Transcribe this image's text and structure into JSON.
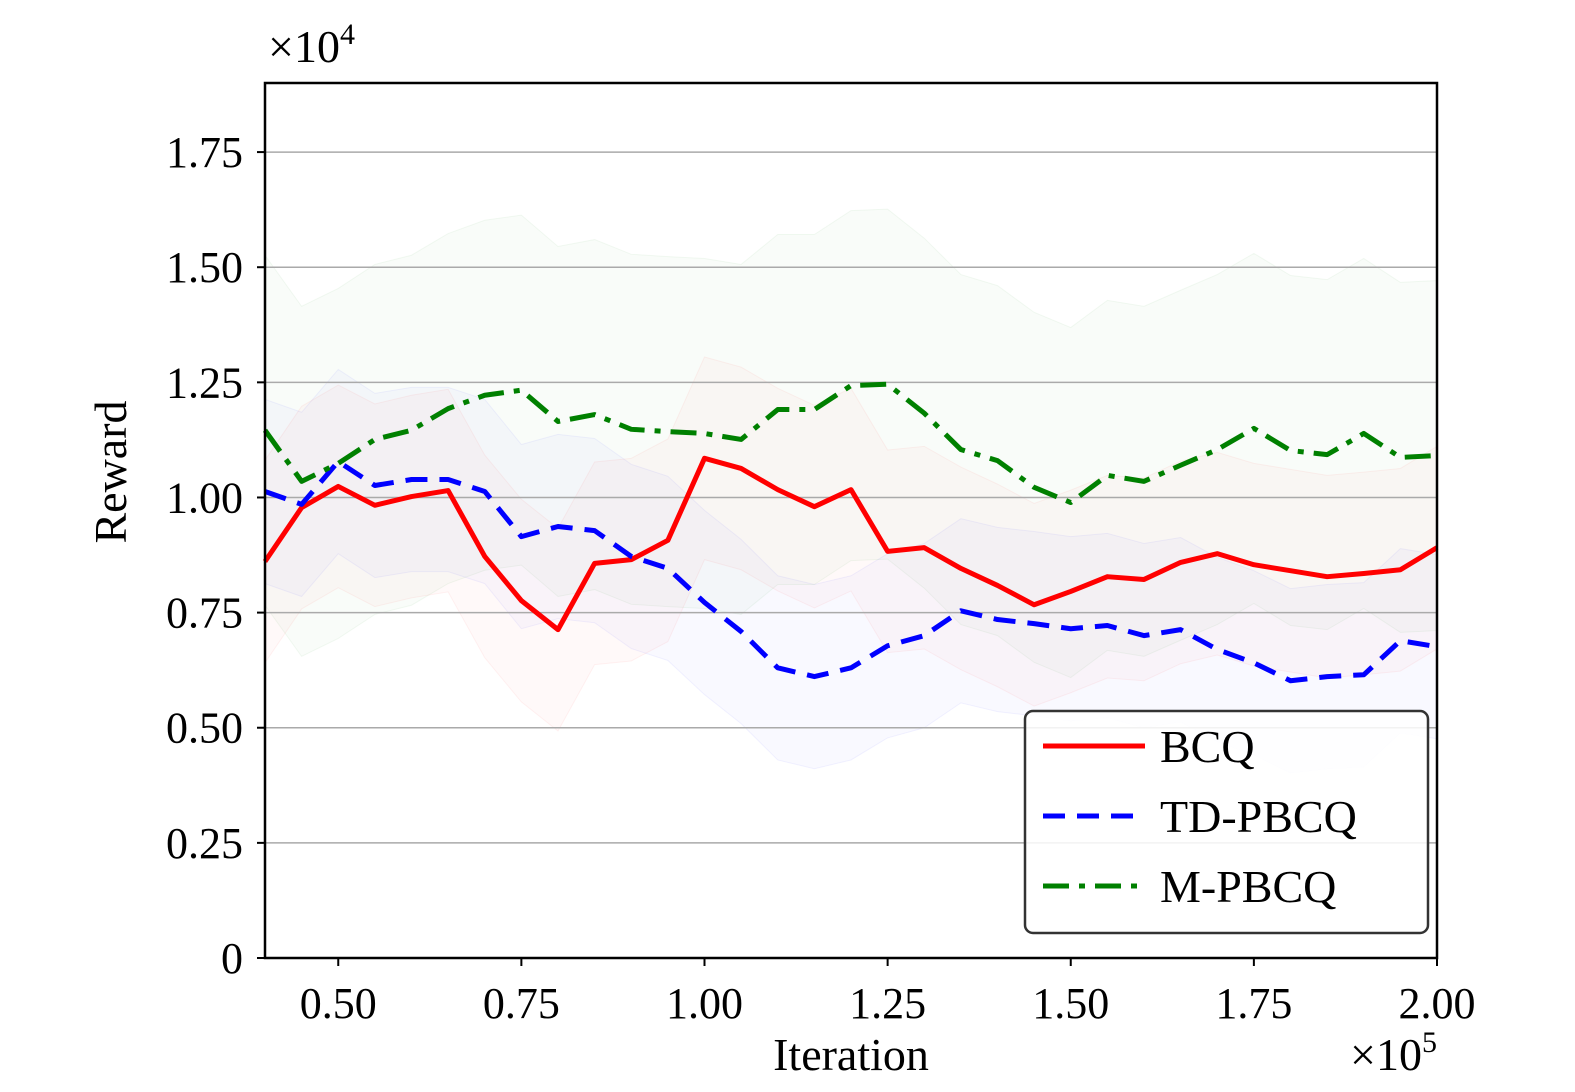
{
  "chart_data": {
    "type": "line",
    "title": "",
    "xlabel": "Iteration",
    "ylabel": "Reward",
    "x_multiplier": "×10",
    "x_multiplier_exp": "5",
    "y_multiplier": "×10",
    "y_multiplier_exp": "4",
    "xlim": [
      0.4,
      2.0
    ],
    "ylim": [
      0,
      1.9
    ],
    "grid": "horizontal",
    "legend_position": "lower-right",
    "xticks": [
      0.5,
      0.75,
      1.0,
      1.25,
      1.5,
      1.75,
      2.0
    ],
    "xtick_labels": [
      "0.50",
      "0.75",
      "1.00",
      "1.25",
      "1.50",
      "1.75",
      "2.00"
    ],
    "yticks": [
      0,
      0.25,
      0.5,
      0.75,
      1.0,
      1.25,
      1.5,
      1.75
    ],
    "ytick_labels": [
      "0",
      "0.25",
      "0.50",
      "0.75",
      "1.00",
      "1.25",
      "1.50",
      "1.75"
    ],
    "x": [
      0.4,
      0.45,
      0.5,
      0.55,
      0.6,
      0.65,
      0.7,
      0.75,
      0.8,
      0.85,
      0.9,
      0.95,
      1.0,
      1.05,
      1.1,
      1.15,
      1.2,
      1.25,
      1.3,
      1.35,
      1.4,
      1.45,
      1.5,
      1.55,
      1.6,
      1.65,
      1.7,
      1.75,
      1.8,
      1.85,
      1.9,
      1.95,
      2.0
    ],
    "series": [
      {
        "name": "BCQ",
        "color": "#ff0000",
        "dash": "solid",
        "band": 0.22,
        "values": [
          0.861,
          0.978,
          1.024,
          0.983,
          1.002,
          1.015,
          0.872,
          0.776,
          0.713,
          0.857,
          0.865,
          0.907,
          1.085,
          1.063,
          1.017,
          0.98,
          1.017,
          0.883,
          0.891,
          0.846,
          0.809,
          0.767,
          0.796,
          0.828,
          0.822,
          0.859,
          0.878,
          0.854,
          0.841,
          0.828,
          0.835,
          0.843,
          0.891
        ]
      },
      {
        "name": "TD-PBCQ",
        "color": "#0000ff",
        "dash": "dashed",
        "band": 0.2,
        "values": [
          1.013,
          0.985,
          1.078,
          1.026,
          1.039,
          1.039,
          1.013,
          0.915,
          0.937,
          0.928,
          0.872,
          0.846,
          0.772,
          0.709,
          0.63,
          0.611,
          0.63,
          0.678,
          0.7,
          0.754,
          0.735,
          0.726,
          0.715,
          0.722,
          0.7,
          0.713,
          0.67,
          0.641,
          0.602,
          0.611,
          0.615,
          0.689,
          0.676
        ]
      },
      {
        "name": "M-PBCQ",
        "color": "#008000",
        "dash": "dashdot",
        "band": 0.38,
        "values": [
          1.146,
          1.035,
          1.074,
          1.126,
          1.146,
          1.193,
          1.222,
          1.233,
          1.165,
          1.18,
          1.148,
          1.143,
          1.139,
          1.126,
          1.191,
          1.191,
          1.243,
          1.246,
          1.183,
          1.104,
          1.08,
          1.022,
          0.989,
          1.048,
          1.035,
          1.07,
          1.104,
          1.15,
          1.102,
          1.093,
          1.139,
          1.087,
          1.091
        ]
      }
    ]
  }
}
